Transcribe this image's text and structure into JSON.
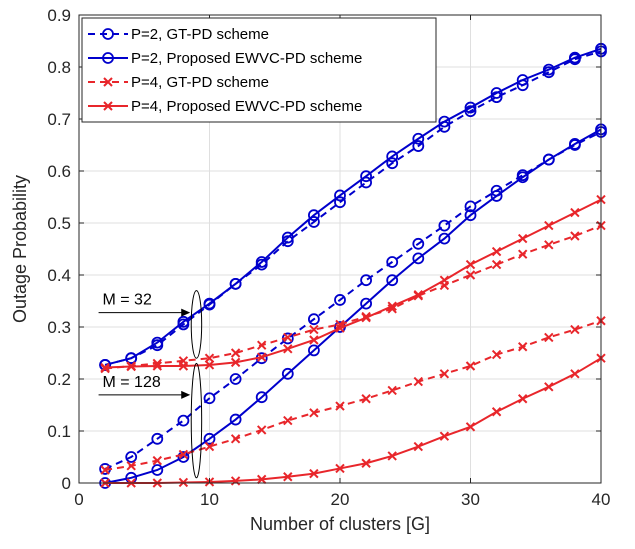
{
  "chart_data": {
    "type": "line",
    "xlabel": "Number of clusters [G]",
    "ylabel": "Outage Probability",
    "xlim": [
      0,
      40
    ],
    "ylim": [
      0,
      0.9
    ],
    "xticks": [
      0,
      10,
      20,
      30,
      40
    ],
    "yticks": [
      0,
      0.1,
      0.2,
      0.3,
      0.4,
      0.5,
      0.6,
      0.7,
      0.8,
      0.9
    ],
    "grid": true,
    "legend_position": "top-left",
    "x": [
      2,
      4,
      6,
      8,
      10,
      12,
      14,
      16,
      18,
      20,
      22,
      24,
      26,
      28,
      30,
      32,
      34,
      36,
      38,
      40
    ],
    "series": [
      {
        "name": "P=2, GT-PD scheme",
        "color": "#0000cc",
        "dash": true,
        "marker": "circle",
        "values": [
          0.227,
          0.24,
          0.265,
          0.305,
          0.343,
          0.383,
          0.42,
          0.465,
          0.502,
          0.54,
          0.578,
          0.615,
          0.648,
          0.685,
          0.715,
          0.742,
          0.765,
          0.79,
          0.815,
          0.83
        ]
      },
      {
        "name": "P=2, Proposed EWVC-PD scheme",
        "color": "#0000cc",
        "dash": false,
        "marker": "circle",
        "values": [
          0.227,
          0.24,
          0.27,
          0.31,
          0.345,
          0.383,
          0.425,
          0.472,
          0.515,
          0.553,
          0.59,
          0.628,
          0.662,
          0.695,
          0.722,
          0.75,
          0.775,
          0.795,
          0.818,
          0.835
        ]
      },
      {
        "name": "P=2, GT-PD scheme",
        "color": "#0000cc",
        "dash": true,
        "marker": "circle",
        "values": [
          0.027,
          0.05,
          0.085,
          0.12,
          0.163,
          0.2,
          0.24,
          0.278,
          0.315,
          0.352,
          0.39,
          0.425,
          0.46,
          0.495,
          0.532,
          0.562,
          0.592,
          0.622,
          0.65,
          0.675
        ]
      },
      {
        "name": "P=2, Proposed EWVC-PD scheme",
        "color": "#0000cc",
        "dash": false,
        "marker": "circle",
        "values": [
          0.0,
          0.01,
          0.025,
          0.05,
          0.085,
          0.122,
          0.165,
          0.21,
          0.255,
          0.3,
          0.345,
          0.39,
          0.432,
          0.47,
          0.515,
          0.552,
          0.588,
          0.622,
          0.652,
          0.68
        ]
      },
      {
        "name": "P=4, GT-PD scheme",
        "color": "#e8262b",
        "dash": true,
        "marker": "x",
        "values": [
          0.22,
          0.225,
          0.23,
          0.235,
          0.24,
          0.25,
          0.265,
          0.28,
          0.295,
          0.305,
          0.32,
          0.335,
          0.36,
          0.38,
          0.4,
          0.42,
          0.44,
          0.458,
          0.475,
          0.495
        ]
      },
      {
        "name": "P=4, Proposed EWVC-PD scheme",
        "color": "#e8262b",
        "dash": false,
        "marker": "x",
        "values": [
          0.222,
          0.224,
          0.225,
          0.225,
          0.227,
          0.232,
          0.242,
          0.258,
          0.275,
          0.298,
          0.318,
          0.34,
          0.362,
          0.39,
          0.42,
          0.445,
          0.47,
          0.495,
          0.52,
          0.545
        ]
      },
      {
        "name": "P=4, GT-PD scheme",
        "color": "#e8262b",
        "dash": true,
        "marker": "x",
        "values": [
          0.025,
          0.033,
          0.043,
          0.055,
          0.07,
          0.085,
          0.102,
          0.12,
          0.135,
          0.148,
          0.162,
          0.178,
          0.195,
          0.21,
          0.225,
          0.247,
          0.262,
          0.28,
          0.295,
          0.312
        ]
      },
      {
        "name": "P=4, Proposed EWVC-PD scheme",
        "color": "#e8262b",
        "dash": false,
        "marker": "x",
        "values": [
          0.0,
          0.0,
          0.0,
          0.001,
          0.002,
          0.004,
          0.007,
          0.012,
          0.018,
          0.028,
          0.038,
          0.052,
          0.07,
          0.09,
          0.108,
          0.137,
          0.162,
          0.185,
          0.21,
          0.24
        ]
      }
    ],
    "legend": [
      {
        "label": "P=2, GT-PD scheme",
        "color": "#0000cc",
        "dash": true,
        "marker": "circle"
      },
      {
        "label": "P=2, Proposed EWVC-PD scheme",
        "color": "#0000cc",
        "dash": false,
        "marker": "circle"
      },
      {
        "label": "P=4, GT-PD scheme",
        "color": "#e8262b",
        "dash": true,
        "marker": "x"
      },
      {
        "label": "P=4, Proposed EWVC-PD scheme",
        "color": "#e8262b",
        "dash": false,
        "marker": "x"
      }
    ],
    "annotations": [
      {
        "text": "M = 32",
        "ellipse_center": [
          9,
          0.305
        ],
        "ellipse_rx": 0.4,
        "ellipse_ry": 0.065
      },
      {
        "text": "M = 128",
        "ellipse_center": [
          9,
          0.12
        ],
        "ellipse_rx": 0.4,
        "ellipse_ry": 0.11
      }
    ]
  }
}
